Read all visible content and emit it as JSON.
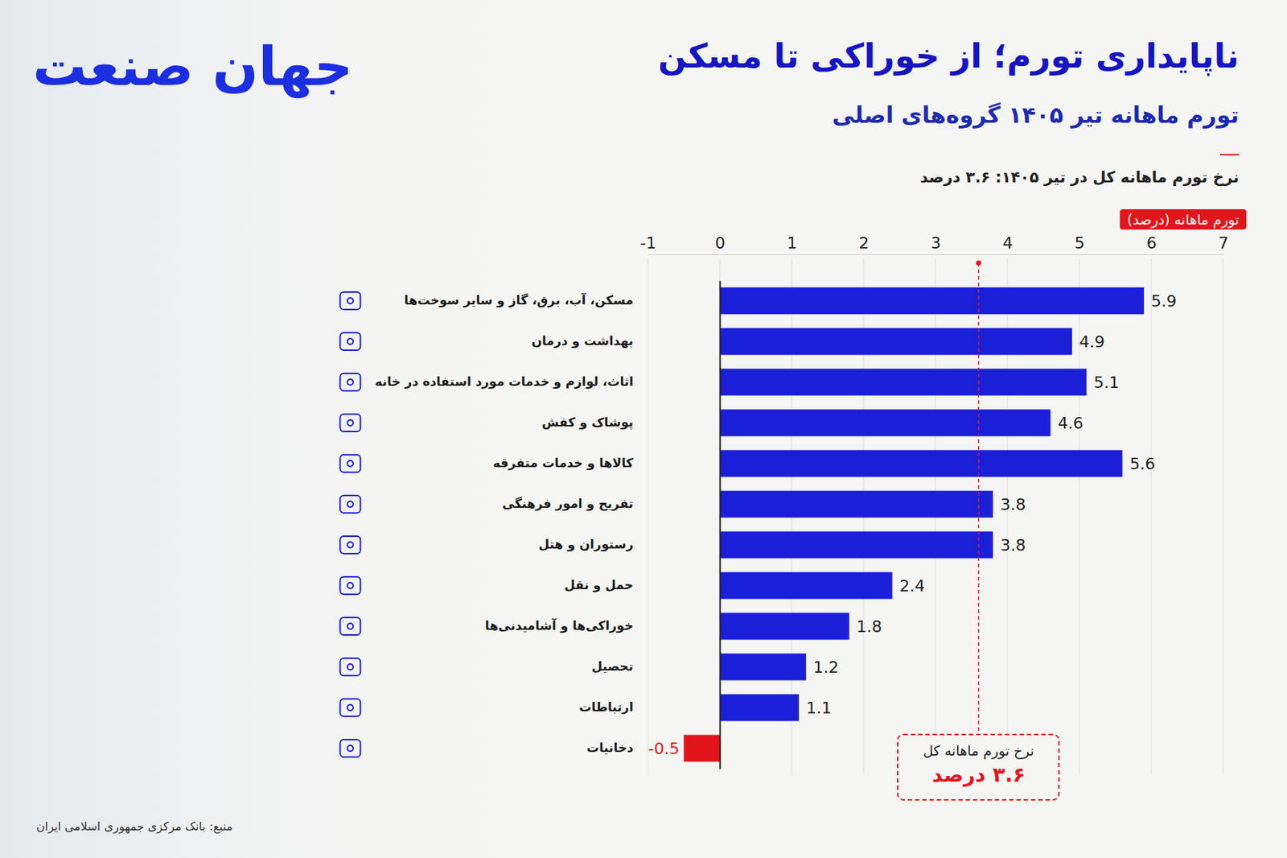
{
  "chart_data": {
    "type": "bar",
    "orientation": "horizontal",
    "brand": "جهان صنعت",
    "title": "ناپایداری تورم؛ از خوراکی تا مسکن",
    "subtitle": "تورم ماهانه تیر ۱۴۰۵ گروه‌های اصلی",
    "note": "نرخ تورم ماهانه کل در تیر ۱۴۰۵: ۳.۶ درصد",
    "xlabel": "تورم ماهانه (درصد)",
    "source": "منبع: بانک مرکزی جمهوری اسلامی ایران",
    "categories": [
      "مسکن، آب، برق، گاز و سایر سوخت‌ها",
      "بهداشت و درمان",
      "اثاث، لوازم و خدمات مورد استفاده در خانه",
      "پوشاک و کفش",
      "کالاها و خدمات متفرقه",
      "تفریح و امور فرهنگی",
      "رستوران و هتل",
      "حمل و نقل",
      "خوراکی‌ها و آشامیدنی‌ها",
      "تحصیل",
      "ارتباطات",
      "دخانیات"
    ],
    "values": [
      5.9,
      4.9,
      5.1,
      4.6,
      5.6,
      3.8,
      3.8,
      2.4,
      1.8,
      1.2,
      1.1,
      -0.5
    ],
    "colors": [
      "#1c1fd8",
      "#1c1fd8",
      "#1c1fd8",
      "#1c1fd8",
      "#1c1fd8",
      "#1c1fd8",
      "#1c1fd8",
      "#1c1fd8",
      "#1c1fd8",
      "#1c1fd8",
      "#1c1fd8",
      "#e3151c"
    ],
    "xlim": [
      -1,
      7
    ],
    "xticks": [
      -1,
      0,
      1,
      2,
      3,
      4,
      5,
      6,
      7
    ],
    "grid": true,
    "data_labels": true,
    "annotations": [
      {
        "label": "نرخ تورم ماهانه کل",
        "value_label": "۳.۶ درصد",
        "value": 3.6
      }
    ]
  }
}
